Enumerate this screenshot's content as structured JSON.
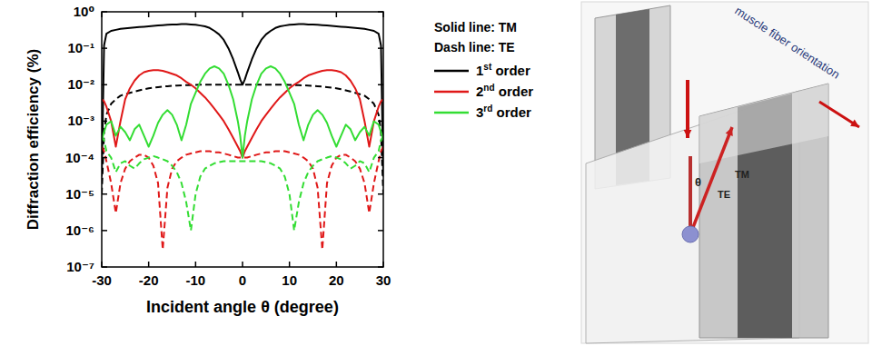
{
  "chart_data": {
    "type": "line",
    "x_label": "Incident angle θ (degree)",
    "y_label": "Diffraction efficiency (%)",
    "annotations": [
      "Solid line: TM",
      "Dash line: TE"
    ],
    "log": "y",
    "grid": false,
    "legend": "right",
    "xlim": [
      -30,
      30
    ],
    "xticks": [
      -30,
      -20,
      -10,
      0,
      10,
      20,
      30
    ],
    "ylim": [
      1e-07,
      1
    ],
    "yticks": [
      {
        "value": 1,
        "label": "10⁰"
      },
      {
        "value": 0.1,
        "label": "10⁻¹"
      },
      {
        "value": 0.01,
        "label": "10⁻²"
      },
      {
        "value": 0.001,
        "label": "10⁻³"
      },
      {
        "value": 0.0001,
        "label": "10⁻⁴"
      },
      {
        "value": 1e-05,
        "label": "10⁻⁵"
      },
      {
        "value": 1e-06,
        "label": "10⁻⁶"
      },
      {
        "value": 1e-07,
        "label": "10⁻⁷"
      }
    ],
    "x": [
      -30,
      -29.5,
      -29,
      -28,
      -27,
      -26,
      -25,
      -24,
      -23,
      -22,
      -21,
      -20,
      -19,
      -18,
      -17,
      -16,
      -15,
      -14,
      -13,
      -12,
      -11,
      -10,
      -9,
      -8,
      -7,
      -6,
      -5,
      -4,
      -3,
      -2,
      -1,
      -0.5,
      0,
      0.5,
      1,
      2,
      3,
      4,
      5,
      6,
      7,
      8,
      9,
      10,
      11,
      12,
      13,
      14,
      15,
      16,
      17,
      18,
      19,
      20,
      21,
      22,
      23,
      24,
      25,
      26,
      27,
      28,
      29,
      29.5,
      30
    ],
    "series": [
      {
        "name": "1st order",
        "color": "#000000",
        "line_style": "solid",
        "values": [
          3e-05,
          0.12,
          0.25,
          0.3,
          0.32,
          0.34,
          0.35,
          0.36,
          0.37,
          0.38,
          0.39,
          0.4,
          0.41,
          0.42,
          0.43,
          0.44,
          0.45,
          0.45,
          0.46,
          0.46,
          0.45,
          0.44,
          0.42,
          0.4,
          0.36,
          0.3,
          0.24,
          0.17,
          0.1,
          0.05,
          0.022,
          0.014,
          0.01,
          0.014,
          0.022,
          0.05,
          0.1,
          0.17,
          0.24,
          0.3,
          0.36,
          0.4,
          0.42,
          0.44,
          0.45,
          0.46,
          0.46,
          0.45,
          0.45,
          0.44,
          0.43,
          0.42,
          0.41,
          0.4,
          0.39,
          0.38,
          0.37,
          0.36,
          0.35,
          0.34,
          0.32,
          0.3,
          0.25,
          0.12,
          3e-05
        ]
      },
      {
        "name": "1st order",
        "color": "#000000",
        "line_style": "dashed",
        "values": [
          1e-05,
          0.0005,
          0.0015,
          0.003,
          0.004,
          0.005,
          0.0055,
          0.006,
          0.0065,
          0.007,
          0.0075,
          0.008,
          0.0083,
          0.0086,
          0.0089,
          0.0091,
          0.0093,
          0.0095,
          0.0096,
          0.0097,
          0.0098,
          0.0099,
          0.01,
          0.01,
          0.01,
          0.01,
          0.01,
          0.01,
          0.01,
          0.01,
          0.01,
          0.01,
          0.01,
          0.01,
          0.01,
          0.01,
          0.01,
          0.01,
          0.01,
          0.01,
          0.01,
          0.01,
          0.01,
          0.0099,
          0.0098,
          0.0097,
          0.0096,
          0.0095,
          0.0093,
          0.0091,
          0.0089,
          0.0086,
          0.0083,
          0.008,
          0.0075,
          0.007,
          0.0065,
          0.006,
          0.0055,
          0.005,
          0.004,
          0.003,
          0.0015,
          0.0005,
          1e-05
        ]
      },
      {
        "name": "2nd order",
        "color": "#e01818",
        "line_style": "solid",
        "values": [
          0.004,
          0.0035,
          0.0025,
          0.001,
          0.0002,
          0.001,
          0.004,
          0.008,
          0.013,
          0.018,
          0.022,
          0.024,
          0.025,
          0.025,
          0.024,
          0.022,
          0.02,
          0.018,
          0.015,
          0.012,
          0.01,
          0.008,
          0.006,
          0.0045,
          0.0032,
          0.0022,
          0.0015,
          0.001,
          0.0006,
          0.00035,
          0.0002,
          0.00015,
          0.0001,
          0.00015,
          0.0002,
          0.00035,
          0.0006,
          0.001,
          0.0015,
          0.0022,
          0.0032,
          0.0045,
          0.006,
          0.008,
          0.01,
          0.012,
          0.015,
          0.018,
          0.02,
          0.022,
          0.024,
          0.025,
          0.025,
          0.024,
          0.022,
          0.018,
          0.013,
          0.008,
          0.004,
          0.001,
          0.0002,
          0.001,
          0.0025,
          0.0035,
          0.004
        ]
      },
      {
        "name": "2nd order",
        "color": "#e01818",
        "line_style": "dashed",
        "values": [
          0.0002,
          0.00015,
          8e-05,
          2e-05,
          3e-06,
          2e-05,
          5e-05,
          8e-05,
          0.0001,
          0.00012,
          0.00012,
          0.0001,
          6e-05,
          2e-05,
          3e-07,
          1.5e-05,
          5e-05,
          8e-05,
          0.0001,
          0.00012,
          0.00013,
          0.00014,
          0.00015,
          0.00015,
          0.00015,
          0.00014,
          0.00014,
          0.00013,
          0.00012,
          0.00011,
          0.0001,
          0.0001,
          0.0001,
          0.0001,
          0.0001,
          0.00011,
          0.00012,
          0.00013,
          0.00014,
          0.00014,
          0.00015,
          0.00015,
          0.00015,
          0.00014,
          0.00013,
          0.00012,
          0.0001,
          8e-05,
          5e-05,
          1.5e-05,
          3e-07,
          2e-05,
          6e-05,
          0.0001,
          0.00012,
          0.00012,
          0.0001,
          8e-05,
          5e-05,
          2e-05,
          3e-06,
          2e-05,
          8e-05,
          0.00015,
          0.0002
        ]
      },
      {
        "name": "3rd order",
        "color": "#33dd33",
        "line_style": "solid",
        "values": [
          0.0003,
          0.0005,
          0.0008,
          0.001,
          0.0004,
          0.0007,
          0.0005,
          0.0003,
          0.0006,
          0.0008,
          0.0004,
          0.0002,
          0.0004,
          0.0009,
          0.0015,
          0.002,
          0.0015,
          0.0008,
          0.0003,
          0.0008,
          0.003,
          0.006,
          0.012,
          0.02,
          0.028,
          0.032,
          0.028,
          0.02,
          0.01,
          0.004,
          0.001,
          0.0004,
          0.0001,
          0.0004,
          0.001,
          0.004,
          0.01,
          0.02,
          0.028,
          0.032,
          0.028,
          0.02,
          0.012,
          0.006,
          0.003,
          0.0008,
          0.0003,
          0.0008,
          0.0015,
          0.002,
          0.0015,
          0.0009,
          0.0004,
          0.0002,
          0.0004,
          0.0008,
          0.0006,
          0.0003,
          0.0005,
          0.0007,
          0.0004,
          0.001,
          0.0008,
          0.0005,
          0.0003
        ]
      },
      {
        "name": "3rd order",
        "color": "#33dd33",
        "line_style": "dashed",
        "values": [
          0.0004,
          0.0003,
          0.00015,
          0.0001,
          4e-05,
          7e-05,
          8e-05,
          6e-05,
          5e-05,
          7e-05,
          9e-05,
          0.0001,
          0.00011,
          0.0001,
          9e-05,
          8e-05,
          6e-05,
          4e-05,
          2e-05,
          6e-06,
          1e-06,
          1e-05,
          3e-05,
          5e-05,
          6e-05,
          7e-05,
          7.5e-05,
          8e-05,
          8e-05,
          8e-05,
          8e-05,
          8e-05,
          8e-05,
          8e-05,
          8e-05,
          8e-05,
          8e-05,
          8e-05,
          7.5e-05,
          7e-05,
          6e-05,
          5e-05,
          3e-05,
          1e-05,
          1e-06,
          6e-06,
          2e-05,
          4e-05,
          6e-05,
          8e-05,
          9e-05,
          0.0001,
          0.00011,
          0.0001,
          9e-05,
          7e-05,
          5e-05,
          6e-05,
          8e-05,
          7e-05,
          4e-05,
          0.0001,
          0.00015,
          0.0003,
          0.0004
        ]
      }
    ]
  },
  "diagram": {
    "fiber_orientation": "muscle fiber orientation",
    "angle": "θ",
    "tm": "TM",
    "te": "TE"
  }
}
